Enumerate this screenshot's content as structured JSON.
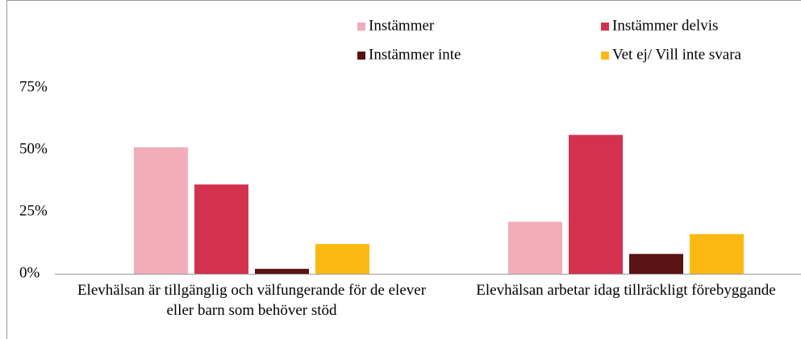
{
  "chart_data": {
    "type": "bar",
    "categories": [
      "Elevhälsan är tillgänglig och välfungerande för de elever eller barn som behöver stöd",
      "Elevhälsan arbetar idag tillräckligt förebyggande"
    ],
    "series": [
      {
        "name": "Instämmer",
        "color": "#f0adb9",
        "values": [
          51,
          21
        ]
      },
      {
        "name": "Instämmer delvis",
        "color": "#d4314f",
        "values": [
          36,
          56
        ]
      },
      {
        "name": "Instämmer inte",
        "color": "#5a1212",
        "values": [
          2,
          8
        ]
      },
      {
        "name": "Vet ej/ Vill inte svara",
        "color": "#fdb913",
        "values": [
          12,
          16
        ]
      }
    ],
    "ylim": [
      0,
      75
    ],
    "yticks": [
      {
        "value": 0,
        "label": "0%"
      },
      {
        "value": 25,
        "label": "25%"
      },
      {
        "value": 50,
        "label": "50%"
      },
      {
        "value": 75,
        "label": "75%"
      }
    ],
    "grid": false,
    "legend": "top-right"
  }
}
